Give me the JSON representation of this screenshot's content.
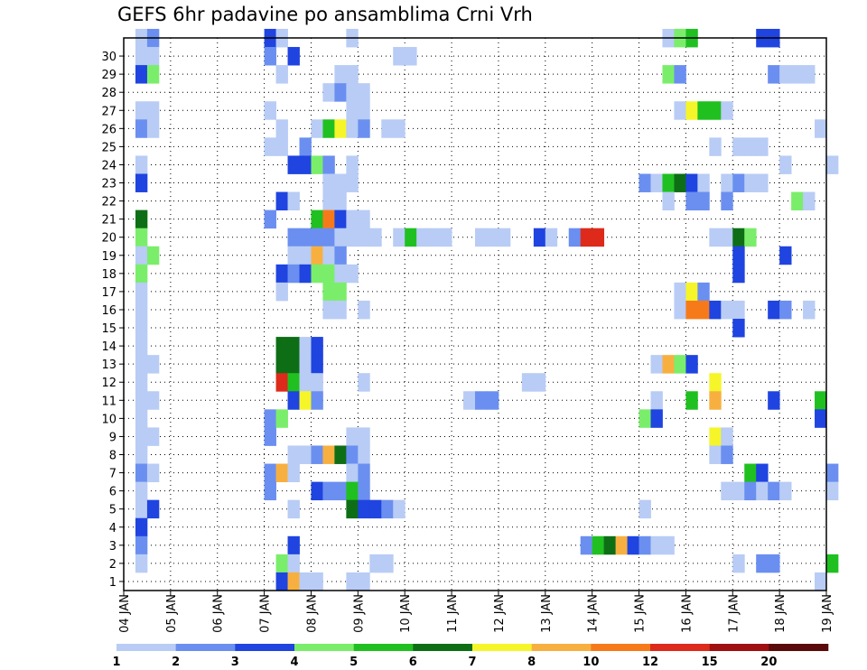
{
  "chart_data": {
    "type": "heatmap",
    "title": "GEFS 6hr padavine po ansamblima Crni Vrh",
    "xlabel": "",
    "ylabel": "",
    "x_ticks": [
      "04 JAN",
      "05 JAN",
      "06 JAN",
      "07 JAN",
      "08 JAN",
      "09 JAN",
      "10 JAN",
      "11 JAN",
      "12 JAN",
      "13 JAN",
      "14 JAN",
      "15 JAN",
      "16 JAN",
      "17 JAN",
      "18 JAN",
      "19 JAN"
    ],
    "y_ticks": [
      "1",
      "2",
      "3",
      "4",
      "5",
      "6",
      "7",
      "8",
      "9",
      "10",
      "11",
      "12",
      "13",
      "14",
      "15",
      "16",
      "17",
      "18",
      "19",
      "20",
      "21",
      "22",
      "23",
      "24",
      "25",
      "26",
      "27",
      "28",
      "29",
      "30"
    ],
    "x_range_days": [
      0,
      15
    ],
    "x_start_label": "04 JAN",
    "time_step_hours": 6,
    "members": 30,
    "grid": true,
    "legend_placement": "bottom",
    "colorbar": {
      "labels": [
        "1",
        "2",
        "3",
        "4",
        "5",
        "6",
        "7",
        "8",
        "10",
        "12",
        "15",
        "20"
      ],
      "colors": [
        "#b8ccf5",
        "#6b8ff0",
        "#1f44e0",
        "#7aee6a",
        "#20c020",
        "#0e6e16",
        "#f5f52a",
        "#f7b040",
        "#f77a1a",
        "#dd2a1a",
        "#a01010",
        "#5a0a0a"
      ]
    },
    "cells": [
      [
        30,
        0.25,
        1
      ],
      [
        30,
        0.5,
        2
      ],
      [
        30,
        3.0,
        3
      ],
      [
        30,
        3.25,
        1
      ],
      [
        30,
        4.75,
        1
      ],
      [
        30,
        11.5,
        1
      ],
      [
        30,
        11.75,
        4
      ],
      [
        30,
        12.0,
        5
      ],
      [
        30,
        13.5,
        3
      ],
      [
        30,
        13.75,
        3
      ],
      [
        29,
        0.25,
        1
      ],
      [
        29,
        0.5,
        1
      ],
      [
        29,
        3.0,
        2
      ],
      [
        29,
        3.5,
        3
      ],
      [
        29,
        5.75,
        1
      ],
      [
        29,
        6.0,
        1
      ],
      [
        28,
        0.25,
        3
      ],
      [
        28,
        0.5,
        4
      ],
      [
        28,
        3.25,
        1
      ],
      [
        28,
        4.5,
        1
      ],
      [
        28,
        4.75,
        1
      ],
      [
        28,
        11.5,
        4
      ],
      [
        28,
        11.75,
        2
      ],
      [
        28,
        13.75,
        2
      ],
      [
        28,
        14.0,
        1
      ],
      [
        28,
        14.25,
        1
      ],
      [
        28,
        14.5,
        1
      ],
      [
        27,
        4.25,
        1
      ],
      [
        27,
        4.5,
        2
      ],
      [
        27,
        4.75,
        1
      ],
      [
        27,
        5.0,
        1
      ],
      [
        26,
        0.25,
        1
      ],
      [
        26,
        0.5,
        1
      ],
      [
        26,
        3.0,
        1
      ],
      [
        26,
        4.75,
        1
      ],
      [
        26,
        5.0,
        1
      ],
      [
        26,
        11.75,
        1
      ],
      [
        26,
        12.0,
        7
      ],
      [
        26,
        12.25,
        5
      ],
      [
        26,
        12.5,
        5
      ],
      [
        26,
        12.75,
        1
      ],
      [
        25,
        0.25,
        2
      ],
      [
        25,
        0.5,
        1
      ],
      [
        25,
        3.25,
        1
      ],
      [
        25,
        4.0,
        1
      ],
      [
        25,
        4.25,
        5
      ],
      [
        25,
        4.5,
        7
      ],
      [
        25,
        4.75,
        1
      ],
      [
        25,
        5.0,
        2
      ],
      [
        25,
        5.5,
        1
      ],
      [
        25,
        5.75,
        1
      ],
      [
        25,
        14.75,
        1
      ],
      [
        24,
        3.0,
        1
      ],
      [
        24,
        3.25,
        1
      ],
      [
        24,
        3.75,
        2
      ],
      [
        24,
        12.5,
        1
      ],
      [
        24,
        13.0,
        1
      ],
      [
        24,
        13.25,
        1
      ],
      [
        24,
        13.5,
        1
      ],
      [
        23,
        0.25,
        1
      ],
      [
        23,
        3.5,
        3
      ],
      [
        23,
        3.75,
        3
      ],
      [
        23,
        4.0,
        4
      ],
      [
        23,
        4.25,
        2
      ],
      [
        23,
        4.75,
        1
      ],
      [
        23,
        14.0,
        1
      ],
      [
        23,
        15.0,
        1
      ],
      [
        22,
        0.25,
        3
      ],
      [
        22,
        4.25,
        1
      ],
      [
        22,
        4.5,
        1
      ],
      [
        22,
        4.75,
        1
      ],
      [
        22,
        11.0,
        2
      ],
      [
        22,
        11.25,
        1
      ],
      [
        22,
        11.5,
        5
      ],
      [
        22,
        11.75,
        6
      ],
      [
        22,
        12.0,
        3
      ],
      [
        22,
        12.25,
        1
      ],
      [
        22,
        12.75,
        1
      ],
      [
        22,
        13.0,
        2
      ],
      [
        22,
        13.25,
        1
      ],
      [
        22,
        13.5,
        1
      ],
      [
        21,
        3.25,
        3
      ],
      [
        21,
        3.5,
        1
      ],
      [
        21,
        4.25,
        1
      ],
      [
        21,
        4.5,
        1
      ],
      [
        21,
        11.5,
        1
      ],
      [
        21,
        12.0,
        2
      ],
      [
        21,
        12.25,
        2
      ],
      [
        21,
        12.75,
        2
      ],
      [
        21,
        14.25,
        4
      ],
      [
        21,
        14.5,
        1
      ],
      [
        20,
        0.25,
        6
      ],
      [
        20,
        3.0,
        2
      ],
      [
        20,
        4.0,
        5
      ],
      [
        20,
        4.25,
        9
      ],
      [
        20,
        4.5,
        3
      ],
      [
        20,
        4.75,
        1
      ],
      [
        20,
        5.0,
        1
      ],
      [
        19,
        0.25,
        4
      ],
      [
        19,
        3.5,
        2
      ],
      [
        19,
        3.75,
        2
      ],
      [
        19,
        4.0,
        2
      ],
      [
        19,
        4.25,
        2
      ],
      [
        19,
        4.5,
        1
      ],
      [
        19,
        4.75,
        1
      ],
      [
        19,
        5.0,
        1
      ],
      [
        19,
        5.25,
        1
      ],
      [
        19,
        5.75,
        1
      ],
      [
        19,
        6.0,
        5
      ],
      [
        19,
        6.25,
        1
      ],
      [
        19,
        6.5,
        1
      ],
      [
        19,
        6.75,
        1
      ],
      [
        19,
        7.5,
        1
      ],
      [
        19,
        7.75,
        1
      ],
      [
        19,
        8.0,
        1
      ],
      [
        19,
        8.75,
        3
      ],
      [
        19,
        9.0,
        1
      ],
      [
        19,
        9.5,
        2
      ],
      [
        19,
        9.75,
        10
      ],
      [
        19,
        10.0,
        10
      ],
      [
        19,
        12.5,
        1
      ],
      [
        19,
        12.75,
        1
      ],
      [
        19,
        13.0,
        6
      ],
      [
        19,
        13.25,
        4
      ],
      [
        18,
        0.25,
        1
      ],
      [
        18,
        0.5,
        4
      ],
      [
        18,
        3.5,
        1
      ],
      [
        18,
        3.75,
        1
      ],
      [
        18,
        4.0,
        8
      ],
      [
        18,
        4.25,
        1
      ],
      [
        18,
        4.5,
        2
      ],
      [
        18,
        13.0,
        3
      ],
      [
        18,
        14.0,
        3
      ],
      [
        17,
        0.25,
        4
      ],
      [
        17,
        3.25,
        3
      ],
      [
        17,
        3.5,
        2
      ],
      [
        17,
        3.75,
        3
      ],
      [
        17,
        4.0,
        4
      ],
      [
        17,
        4.25,
        4
      ],
      [
        17,
        4.5,
        1
      ],
      [
        17,
        4.75,
        1
      ],
      [
        17,
        13.0,
        3
      ],
      [
        16,
        0.25,
        1
      ],
      [
        16,
        3.25,
        1
      ],
      [
        16,
        4.25,
        4
      ],
      [
        16,
        4.5,
        4
      ],
      [
        16,
        11.75,
        1
      ],
      [
        16,
        12.0,
        7
      ],
      [
        16,
        12.25,
        2
      ],
      [
        15,
        0.25,
        1
      ],
      [
        15,
        4.25,
        1
      ],
      [
        15,
        4.5,
        1
      ],
      [
        15,
        5.0,
        1
      ],
      [
        15,
        11.75,
        1
      ],
      [
        15,
        12.0,
        9
      ],
      [
        15,
        12.25,
        9
      ],
      [
        15,
        12.5,
        3
      ],
      [
        15,
        12.75,
        1
      ],
      [
        15,
        13.0,
        1
      ],
      [
        15,
        13.75,
        3
      ],
      [
        15,
        14.0,
        2
      ],
      [
        15,
        14.5,
        1
      ],
      [
        14,
        0.25,
        1
      ],
      [
        14,
        13.0,
        3
      ],
      [
        13,
        0.25,
        1
      ],
      [
        13,
        3.25,
        6
      ],
      [
        13,
        3.5,
        6
      ],
      [
        13,
        3.75,
        1
      ],
      [
        13,
        4.0,
        3
      ],
      [
        12,
        0.25,
        1
      ],
      [
        12,
        0.5,
        1
      ],
      [
        12,
        3.25,
        6
      ],
      [
        12,
        3.5,
        6
      ],
      [
        12,
        3.75,
        1
      ],
      [
        12,
        4.0,
        3
      ],
      [
        12,
        11.25,
        1
      ],
      [
        12,
        11.5,
        8
      ],
      [
        12,
        11.75,
        4
      ],
      [
        12,
        12.0,
        3
      ],
      [
        11,
        0.25,
        1
      ],
      [
        11,
        3.25,
        10
      ],
      [
        11,
        3.5,
        5
      ],
      [
        11,
        3.75,
        1
      ],
      [
        11,
        4.0,
        1
      ],
      [
        11,
        5.0,
        1
      ],
      [
        11,
        8.5,
        1
      ],
      [
        11,
        8.75,
        1
      ],
      [
        11,
        12.5,
        7
      ],
      [
        10,
        0.25,
        1
      ],
      [
        10,
        0.5,
        1
      ],
      [
        10,
        3.5,
        3
      ],
      [
        10,
        3.75,
        7
      ],
      [
        10,
        4.0,
        2
      ],
      [
        10,
        7.25,
        1
      ],
      [
        10,
        7.5,
        2
      ],
      [
        10,
        7.75,
        2
      ],
      [
        10,
        11.25,
        1
      ],
      [
        10,
        12.0,
        5
      ],
      [
        10,
        12.5,
        8
      ],
      [
        10,
        13.75,
        3
      ],
      [
        10,
        14.75,
        5
      ],
      [
        9,
        0.25,
        1
      ],
      [
        9,
        3.0,
        2
      ],
      [
        9,
        3.25,
        4
      ],
      [
        9,
        11.0,
        4
      ],
      [
        9,
        11.25,
        3
      ],
      [
        9,
        14.75,
        3
      ],
      [
        8,
        0.25,
        1
      ],
      [
        8,
        0.5,
        1
      ],
      [
        8,
        3.0,
        2
      ],
      [
        8,
        4.75,
        1
      ],
      [
        8,
        5.0,
        1
      ],
      [
        8,
        12.5,
        7
      ],
      [
        8,
        12.75,
        1
      ],
      [
        7,
        0.25,
        1
      ],
      [
        7,
        3.5,
        1
      ],
      [
        7,
        3.75,
        1
      ],
      [
        7,
        4.0,
        2
      ],
      [
        7,
        4.25,
        8
      ],
      [
        7,
        4.5,
        6
      ],
      [
        7,
        4.75,
        2
      ],
      [
        7,
        5.0,
        1
      ],
      [
        7,
        12.5,
        1
      ],
      [
        7,
        12.75,
        2
      ],
      [
        6,
        0.25,
        2
      ],
      [
        6,
        0.5,
        1
      ],
      [
        6,
        3.0,
        2
      ],
      [
        6,
        3.25,
        8
      ],
      [
        6,
        3.5,
        1
      ],
      [
        6,
        4.75,
        1
      ],
      [
        6,
        5.0,
        2
      ],
      [
        6,
        13.25,
        5
      ],
      [
        6,
        13.5,
        3
      ],
      [
        6,
        15.0,
        2
      ],
      [
        5,
        0.25,
        1
      ],
      [
        5,
        3.0,
        2
      ],
      [
        5,
        4.0,
        3
      ],
      [
        5,
        4.25,
        2
      ],
      [
        5,
        4.5,
        2
      ],
      [
        5,
        4.75,
        5
      ],
      [
        5,
        5.0,
        2
      ],
      [
        5,
        12.75,
        1
      ],
      [
        5,
        13.0,
        1
      ],
      [
        5,
        13.25,
        2
      ],
      [
        5,
        13.5,
        1
      ],
      [
        5,
        13.75,
        2
      ],
      [
        5,
        14.0,
        1
      ],
      [
        5,
        15.0,
        1
      ],
      [
        4,
        0.25,
        1
      ],
      [
        4,
        0.5,
        3
      ],
      [
        4,
        3.5,
        1
      ],
      [
        4,
        4.75,
        6
      ],
      [
        4,
        5.0,
        3
      ],
      [
        4,
        5.25,
        3
      ],
      [
        4,
        5.5,
        2
      ],
      [
        4,
        5.75,
        1
      ],
      [
        4,
        11.0,
        1
      ],
      [
        3,
        0.25,
        3
      ],
      [
        2,
        0.25,
        2
      ],
      [
        2,
        3.5,
        3
      ],
      [
        2,
        9.75,
        2
      ],
      [
        2,
        10.0,
        5
      ],
      [
        2,
        10.25,
        6
      ],
      [
        2,
        10.5,
        8
      ],
      [
        2,
        10.75,
        3
      ],
      [
        2,
        11.0,
        2
      ],
      [
        2,
        11.25,
        1
      ],
      [
        2,
        11.5,
        1
      ],
      [
        1,
        0.25,
        1
      ],
      [
        1,
        3.25,
        4
      ],
      [
        1,
        3.5,
        1
      ],
      [
        1,
        5.25,
        1
      ],
      [
        1,
        5.5,
        1
      ],
      [
        1,
        13.0,
        1
      ],
      [
        1,
        13.5,
        2
      ],
      [
        1,
        13.75,
        2
      ],
      [
        1,
        15.0,
        5
      ],
      [
        0,
        3.25,
        3
      ],
      [
        0,
        3.5,
        8
      ],
      [
        0,
        3.75,
        1
      ],
      [
        0,
        4.0,
        1
      ],
      [
        0,
        4.75,
        1
      ],
      [
        0,
        5.0,
        1
      ],
      [
        0,
        14.75,
        1
      ]
    ]
  }
}
